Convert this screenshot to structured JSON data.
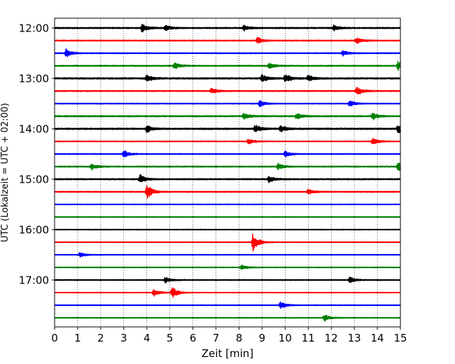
{
  "chart_data": {
    "type": "line",
    "title": "",
    "xlabel": "Zeit  [min]",
    "ylabel": "UTC (Lokalzeit = UTC + 02:00)",
    "xlim": [
      0,
      15
    ],
    "x_ticks": [
      "0",
      "1",
      "2",
      "3",
      "4",
      "5",
      "6",
      "7",
      "8",
      "9",
      "10",
      "11",
      "12",
      "13",
      "14",
      "15"
    ],
    "y_tick_labels": [
      "12:00",
      "13:00",
      "14:00",
      "15:00",
      "16:00",
      "17:00"
    ],
    "grid": "vertical-dotted",
    "trace_minutes": 15,
    "color_cycle": [
      "#000000",
      "#ff0000",
      "#0000ff",
      "#008000"
    ],
    "traces": [
      {
        "start": "12:00",
        "color": "#000000",
        "level": 0.7,
        "events": [
          {
            "t": 3.8,
            "amp": 1.4
          },
          {
            "t": 4.8,
            "amp": 1.0
          },
          {
            "t": 8.2,
            "amp": 1.0
          },
          {
            "t": 12.1,
            "amp": 1.0
          }
        ]
      },
      {
        "start": "12:15",
        "color": "#ff0000",
        "level": 0.6,
        "events": [
          {
            "t": 8.8,
            "amp": 1.0
          },
          {
            "t": 13.1,
            "amp": 1.1
          }
        ]
      },
      {
        "start": "12:30",
        "color": "#0000ff",
        "level": 0.5,
        "events": [
          {
            "t": 0.5,
            "amp": 1.4
          },
          {
            "t": 12.5,
            "amp": 0.9
          }
        ]
      },
      {
        "start": "12:45",
        "color": "#008000",
        "level": 0.6,
        "events": [
          {
            "t": 5.2,
            "amp": 1.0
          },
          {
            "t": 9.3,
            "amp": 1.0
          },
          {
            "t": 14.9,
            "amp": 1.5
          }
        ]
      },
      {
        "start": "13:00",
        "color": "#000000",
        "level": 0.8,
        "events": [
          {
            "t": 4.0,
            "amp": 1.2
          },
          {
            "t": 9.0,
            "amp": 1.3
          },
          {
            "t": 10.0,
            "amp": 1.6
          },
          {
            "t": 11.0,
            "amp": 1.0
          }
        ]
      },
      {
        "start": "13:15",
        "color": "#ff0000",
        "level": 0.6,
        "events": [
          {
            "t": 6.8,
            "amp": 1.0
          },
          {
            "t": 13.1,
            "amp": 1.5
          }
        ]
      },
      {
        "start": "13:30",
        "color": "#0000ff",
        "level": 0.5,
        "events": [
          {
            "t": 8.9,
            "amp": 1.0
          },
          {
            "t": 12.8,
            "amp": 1.0
          }
        ]
      },
      {
        "start": "13:45",
        "color": "#008000",
        "level": 0.7,
        "events": [
          {
            "t": 8.2,
            "amp": 1.0
          },
          {
            "t": 10.5,
            "amp": 1.1
          },
          {
            "t": 13.8,
            "amp": 1.2
          }
        ]
      },
      {
        "start": "14:00",
        "color": "#000000",
        "level": 0.8,
        "events": [
          {
            "t": 4.0,
            "amp": 1.2
          },
          {
            "t": 8.7,
            "amp": 1.3
          },
          {
            "t": 9.8,
            "amp": 1.2
          },
          {
            "t": 14.9,
            "amp": 1.6
          }
        ]
      },
      {
        "start": "14:15",
        "color": "#ff0000",
        "level": 0.5,
        "events": [
          {
            "t": 8.4,
            "amp": 1.0
          },
          {
            "t": 13.8,
            "amp": 1.2
          }
        ]
      },
      {
        "start": "14:30",
        "color": "#0000ff",
        "level": 0.5,
        "events": [
          {
            "t": 3.0,
            "amp": 1.3
          },
          {
            "t": 10.0,
            "amp": 1.0
          }
        ]
      },
      {
        "start": "14:45",
        "color": "#008000",
        "level": 0.6,
        "events": [
          {
            "t": 1.6,
            "amp": 1.2
          },
          {
            "t": 9.7,
            "amp": 1.0
          },
          {
            "t": 14.9,
            "amp": 1.5
          }
        ]
      },
      {
        "start": "15:00",
        "color": "#000000",
        "level": 0.7,
        "events": [
          {
            "t": 3.7,
            "amp": 1.6
          },
          {
            "t": 9.3,
            "amp": 1.0
          }
        ]
      },
      {
        "start": "15:15",
        "color": "#ff0000",
        "level": 0.6,
        "events": [
          {
            "t": 4.0,
            "amp": 2.5
          },
          {
            "t": 11.0,
            "amp": 1.0
          }
        ]
      },
      {
        "start": "15:30",
        "color": "#0000ff",
        "level": 0.4,
        "events": []
      },
      {
        "start": "15:45",
        "color": "#008000",
        "level": 0.4,
        "events": []
      },
      {
        "start": "16:00",
        "color": "#000000",
        "level": 0.4,
        "events": []
      },
      {
        "start": "16:15",
        "color": "#ff0000",
        "level": 0.4,
        "events": [
          {
            "t": 8.6,
            "amp": 3.0
          }
        ]
      },
      {
        "start": "16:30",
        "color": "#0000ff",
        "level": 0.3,
        "events": [
          {
            "t": 1.1,
            "amp": 0.9
          }
        ]
      },
      {
        "start": "16:45",
        "color": "#008000",
        "level": 0.4,
        "events": [
          {
            "t": 8.1,
            "amp": 0.9
          }
        ]
      },
      {
        "start": "17:00",
        "color": "#000000",
        "level": 0.5,
        "events": [
          {
            "t": 4.8,
            "amp": 1.0
          },
          {
            "t": 12.8,
            "amp": 1.0
          }
        ]
      },
      {
        "start": "17:15",
        "color": "#ff0000",
        "level": 0.3,
        "events": [
          {
            "t": 4.3,
            "amp": 1.5
          },
          {
            "t": 5.1,
            "amp": 2.0
          }
        ]
      },
      {
        "start": "17:30",
        "color": "#0000ff",
        "level": 0.4,
        "events": [
          {
            "t": 9.8,
            "amp": 1.3
          }
        ]
      },
      {
        "start": "17:45",
        "color": "#008000",
        "level": 0.4,
        "events": [
          {
            "t": 11.7,
            "amp": 1.2
          }
        ]
      }
    ]
  }
}
